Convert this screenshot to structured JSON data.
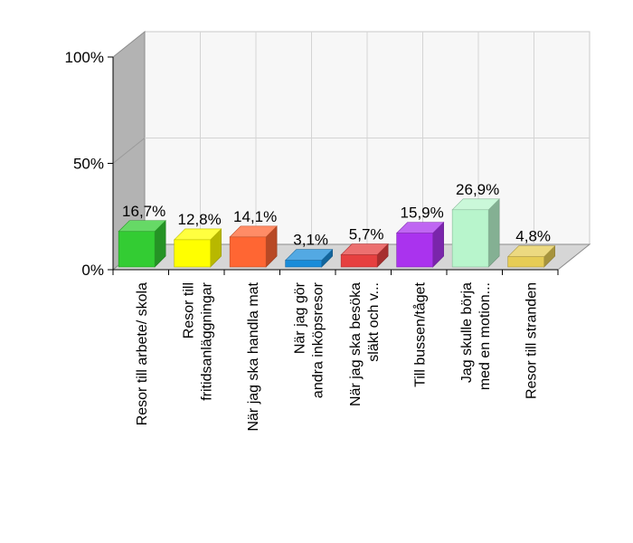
{
  "chart_data": {
    "type": "bar",
    "categories": [
      [
        "Resor till arbete/ skola"
      ],
      [
        "Resor till",
        "fritidsanläggningar"
      ],
      [
        "När jag ska handla mat"
      ],
      [
        "När jag gör",
        "andra inköpsresor"
      ],
      [
        "När jag ska besöka",
        "släkt och v..."
      ],
      [
        "Till bussen/tåget"
      ],
      [
        "Jag skulle börja",
        "med en motion..."
      ],
      [
        "Resor till stranden"
      ]
    ],
    "values": [
      16.7,
      12.8,
      14.1,
      3.1,
      5.7,
      15.9,
      26.9,
      4.8
    ],
    "value_labels": [
      "16,7%",
      "12,8%",
      "14,1%",
      "3,1%",
      "5,7%",
      "15,9%",
      "26,9%",
      "4,8%"
    ],
    "colors": [
      "#33cc33",
      "#ffff00",
      "#ff6633",
      "#1a8cd9",
      "#e64040",
      "#aa33ee",
      "#b8f5cc",
      "#e6cc55"
    ],
    "ylim": [
      0,
      100
    ],
    "yticks": [
      {
        "value": 0,
        "label": "0%"
      },
      {
        "value": 50,
        "label": "50%"
      },
      {
        "value": 100,
        "label": "100%"
      }
    ],
    "grid": true,
    "style": "3d"
  }
}
